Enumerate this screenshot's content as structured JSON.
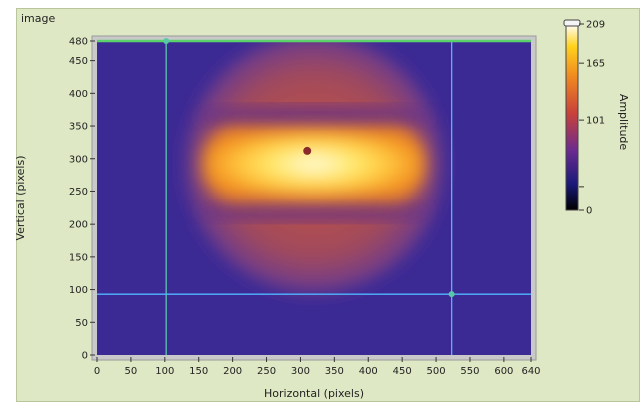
{
  "panel": {
    "title": "image"
  },
  "chart_data": {
    "type": "heatmap",
    "xlabel": "Horizontal (pixels)",
    "ylabel": "Vertical (pixels)",
    "xlim": [
      0,
      640
    ],
    "ylim": [
      0,
      480
    ],
    "x_ticks": [
      0,
      50,
      100,
      150,
      200,
      250,
      300,
      350,
      400,
      450,
      500,
      550,
      600,
      640
    ],
    "y_ticks": [
      0,
      50,
      100,
      150,
      200,
      250,
      300,
      350,
      400,
      450,
      480
    ],
    "colorbar": {
      "label": "Amplitude",
      "range": [
        0,
        209
      ],
      "tick_values": [
        0,
        101,
        165,
        209
      ],
      "tick_labels": [
        "0",
        "101",
        "165",
        "209"
      ],
      "colors": [
        "#000000",
        "#1a1a7a",
        "#6b2b8f",
        "#c9413a",
        "#f08a20",
        "#ffd21c",
        "#ffffff"
      ]
    },
    "cursors": [
      {
        "orientation": "vertical",
        "x": 102,
        "color": "#59c7a8"
      },
      {
        "orientation": "vertical",
        "x": 523,
        "color": "#4fb6ff"
      },
      {
        "orientation": "horizontal",
        "y": 93,
        "color": "#4fb6ff"
      },
      {
        "orientation": "horizontal",
        "y": 480,
        "color": "#5bd36a"
      }
    ],
    "beam": {
      "disk_center": [
        320,
        292
      ],
      "disk_radius": 190,
      "band_center_y": 292,
      "band_half_height": 55,
      "band_x_range": [
        155,
        485
      ],
      "dark_spot": [
        310,
        312
      ]
    }
  }
}
